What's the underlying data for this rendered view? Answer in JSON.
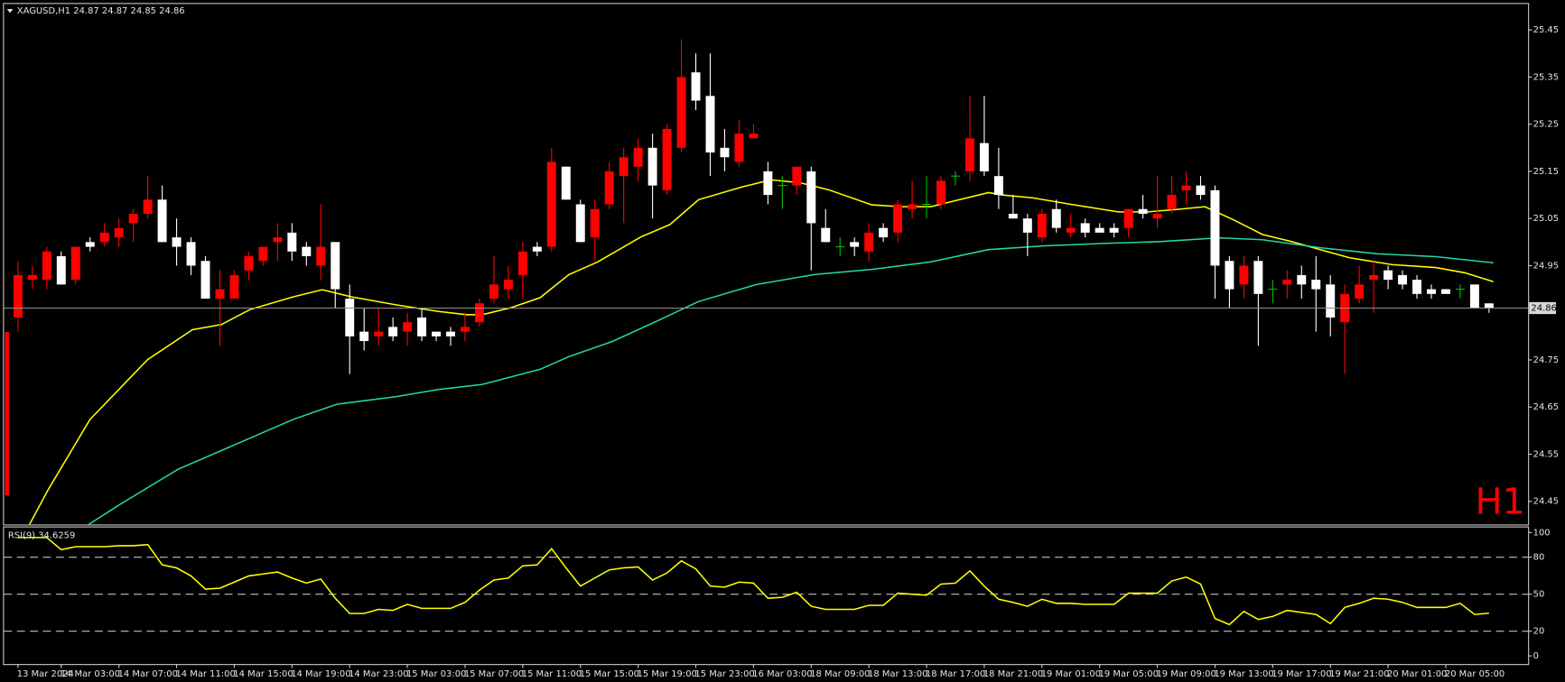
{
  "chart_data": [
    {
      "type": "candlestick",
      "title": "XAGUSD,H1",
      "categories": [
        "13 Mar 2024",
        null,
        null,
        "14 Mar 03:00",
        null,
        null,
        null,
        "14 Mar 07:00",
        null,
        null,
        null,
        "14 Mar 11:00",
        null,
        null,
        null,
        "14 Mar 15:00",
        null,
        null,
        null,
        "14 Mar 19:00",
        null,
        null,
        null,
        "14 Mar 23:00",
        null,
        null,
        null,
        "15 Mar 03:00",
        null,
        null,
        null,
        "15 Mar 07:00",
        null,
        null,
        null,
        "15 Mar 11:00",
        null,
        null,
        null,
        "15 Mar 15:00",
        null,
        null,
        null,
        "15 Mar 19:00",
        null,
        null,
        null,
        "15 Mar 23:00",
        null,
        null,
        null,
        "16 Mar 03:00",
        null,
        null,
        null,
        "18 Mar 09:00",
        null,
        null,
        null,
        "18 Mar 13:00",
        null,
        null,
        null,
        "18 Mar 17:00",
        null,
        null,
        null,
        "18 Mar 21:00",
        null,
        null,
        null,
        "19 Mar 01:00",
        null,
        null,
        null,
        "19 Mar 05:00",
        null,
        null,
        null,
        "19 Mar 09:00",
        null,
        null,
        null,
        "19 Mar 13:00",
        null,
        null,
        null,
        "19 Mar 17:00",
        null,
        null,
        null,
        "19 Mar 21:00",
        null,
        null,
        null,
        "20 Mar 01:00",
        null,
        null,
        null,
        "20 Mar 05:00",
        null,
        null,
        null
      ],
      "open": [
        24.84,
        24.92,
        24.92,
        24.97,
        24.92,
        25.0,
        25.0,
        25.01,
        25.04,
        25.06,
        25.09,
        25.01,
        25.0,
        24.96,
        24.88,
        24.88,
        24.94,
        24.96,
        25.0,
        25.02,
        24.99,
        24.95,
        25.0,
        24.88,
        24.81,
        24.8,
        24.82,
        24.81,
        24.84,
        24.81,
        24.81,
        24.81,
        24.83,
        24.88,
        24.9,
        24.93,
        24.99,
        24.99,
        25.16,
        25.08,
        25.01,
        25.08,
        25.14,
        25.16,
        25.2,
        25.11,
        25.2,
        25.36,
        25.31,
        25.2,
        25.17,
        25.22,
        25.15,
        25.12,
        25.12,
        25.15,
        25.03,
        24.99,
        25.0,
        24.98,
        25.03,
        25.02,
        25.07,
        25.08,
        25.08,
        25.14,
        25.15,
        25.21,
        25.14,
        25.06,
        25.05,
        25.01,
        25.07,
        25.02,
        25.04,
        25.03,
        25.03,
        25.03,
        25.07,
        25.05,
        25.07,
        25.11,
        25.12,
        25.11,
        24.96,
        24.91,
        24.96,
        24.9,
        24.91,
        24.93,
        24.92,
        24.91,
        24.83,
        24.88,
        24.92,
        24.94,
        24.93,
        24.92,
        24.9,
        24.9,
        24.9,
        24.91,
        24.87
      ],
      "high": [
        24.96,
        24.95,
        24.99,
        24.98,
        24.99,
        25.01,
        25.04,
        25.05,
        25.07,
        25.14,
        25.12,
        25.05,
        25.01,
        24.97,
        24.94,
        24.94,
        24.98,
        24.99,
        25.04,
        25.04,
        25.0,
        25.08,
        25.0,
        24.91,
        24.86,
        24.86,
        24.84,
        24.85,
        24.86,
        24.81,
        24.82,
        24.85,
        24.88,
        24.97,
        24.95,
        25.0,
        25.0,
        25.2,
        25.16,
        25.09,
        25.09,
        25.17,
        25.2,
        25.22,
        25.23,
        25.25,
        25.43,
        25.4,
        25.4,
        25.24,
        25.26,
        25.25,
        25.17,
        25.14,
        25.16,
        25.16,
        25.07,
        25.01,
        25.01,
        25.04,
        25.04,
        25.09,
        25.13,
        25.14,
        25.14,
        25.15,
        25.31,
        25.31,
        25.2,
        25.1,
        25.06,
        25.07,
        25.09,
        25.06,
        25.05,
        25.04,
        25.04,
        25.07,
        25.1,
        25.14,
        25.14,
        25.15,
        25.14,
        25.12,
        24.97,
        24.97,
        24.97,
        24.92,
        24.94,
        24.95,
        24.97,
        24.93,
        24.91,
        24.95,
        24.96,
        24.95,
        24.94,
        24.93,
        24.91,
        24.9,
        24.91,
        24.91,
        24.87
      ],
      "low": [
        24.81,
        24.9,
        24.9,
        24.91,
        24.91,
        24.98,
        24.99,
        24.99,
        25.0,
        25.05,
        25.0,
        24.95,
        24.93,
        24.88,
        24.78,
        24.88,
        24.92,
        24.95,
        24.96,
        24.96,
        24.95,
        24.92,
        24.86,
        24.72,
        24.77,
        24.78,
        24.79,
        24.78,
        24.79,
        24.79,
        24.78,
        24.79,
        24.82,
        24.87,
        24.88,
        24.88,
        24.97,
        24.98,
        25.09,
        25.0,
        24.96,
        25.07,
        25.04,
        25.13,
        25.05,
        25.1,
        25.19,
        25.28,
        25.14,
        25.15,
        25.16,
        25.22,
        25.08,
        25.07,
        25.1,
        24.94,
        25.0,
        24.97,
        24.97,
        24.96,
        25.0,
        25.0,
        25.05,
        25.05,
        25.07,
        25.12,
        25.13,
        25.14,
        25.07,
        25.05,
        24.97,
        25.0,
        25.02,
        25.01,
        25.01,
        25.02,
        25.01,
        25.01,
        25.05,
        25.03,
        25.06,
        25.08,
        25.09,
        24.88,
        24.86,
        24.88,
        24.78,
        24.87,
        24.88,
        24.88,
        24.81,
        24.8,
        24.72,
        24.87,
        24.85,
        24.9,
        24.9,
        24.88,
        24.88,
        24.89,
        24.88,
        24.86,
        24.85
      ],
      "close": [
        24.93,
        24.93,
        24.98,
        24.91,
        24.99,
        24.99,
        25.02,
        25.03,
        25.06,
        25.09,
        25.0,
        24.99,
        24.95,
        24.88,
        24.9,
        24.93,
        24.97,
        24.99,
        25.01,
        24.98,
        24.97,
        24.99,
        24.9,
        24.8,
        24.79,
        24.81,
        24.8,
        24.83,
        24.8,
        24.8,
        24.8,
        24.82,
        24.87,
        24.91,
        24.92,
        24.98,
        24.98,
        25.17,
        25.09,
        25.0,
        25.07,
        25.15,
        25.18,
        25.2,
        25.12,
        25.24,
        25.35,
        25.3,
        25.19,
        25.18,
        25.23,
        25.23,
        25.1,
        25.12,
        25.16,
        25.04,
        25.0,
        24.99,
        24.99,
        25.02,
        25.01,
        25.08,
        25.08,
        25.08,
        25.13,
        25.14,
        25.22,
        25.15,
        25.1,
        25.05,
        25.02,
        25.06,
        25.03,
        25.03,
        25.02,
        25.02,
        25.02,
        25.07,
        25.06,
        25.06,
        25.1,
        25.12,
        25.1,
        24.95,
        24.9,
        24.95,
        24.89,
        24.9,
        24.92,
        24.91,
        24.9,
        24.84,
        24.89,
        24.91,
        24.93,
        24.92,
        24.91,
        24.89,
        24.89,
        24.89,
        24.9,
        24.86,
        24.86
      ],
      "up_color": "#ff0000",
      "down_color": "#ffffff",
      "doji_color": "#00c000",
      "ylim": [
        24.401,
        25.505
      ],
      "yticks": [
        25.45,
        25.35,
        25.25,
        25.15,
        25.05,
        24.95,
        24.75,
        24.65,
        24.55,
        24.45
      ],
      "current_price": 24.86,
      "annotation": "H1",
      "series": [
        {
          "color": "#ffff00",
          "x": [
            0.8,
            2.1,
            5,
            9,
            12.1,
            14.1,
            16.1,
            19.1,
            21.1,
            23.1,
            26.2,
            29.1,
            31.1,
            32.2,
            34.2,
            36.2,
            38.2,
            40.2,
            43.2,
            45.2,
            47.2,
            50.2,
            52.2,
            54.2,
            56.2,
            59.2,
            61.2,
            63.3,
            65.3,
            67.3,
            68.2,
            70.3,
            73.2,
            76.3,
            78.3,
            80.3,
            82.3,
            84.3,
            86.3,
            88.3,
            90.3,
            92.3,
            95.3,
            98.3,
            100.3,
            102.3
          ],
          "values": [
            24.401,
            24.475,
            24.624,
            24.751,
            24.814,
            24.825,
            24.857,
            24.884,
            24.899,
            24.884,
            24.867,
            24.853,
            24.846,
            24.846,
            24.861,
            24.882,
            24.931,
            24.958,
            25.011,
            25.037,
            25.09,
            25.117,
            25.132,
            25.126,
            25.111,
            25.079,
            25.075,
            25.075,
            25.09,
            25.105,
            25.1,
            25.094,
            25.079,
            25.064,
            25.064,
            25.069,
            25.075,
            25.047,
            25.016,
            25.001,
            24.984,
            24.967,
            24.952,
            24.946,
            24.935,
            24.916
          ]
        },
        {
          "color": "#20d8a8",
          "x": [
            4.9,
            7.1,
            11.1,
            15.1,
            19.1,
            22.1,
            26.2,
            29.1,
            32.2,
            36.2,
            38.2,
            41.2,
            44.2,
            47.2,
            51.2,
            55.2,
            59.2,
            63.3,
            67.3,
            71.2,
            75.2,
            79.2,
            83.3,
            86.3,
            90.3,
            94.3,
            98.3,
            102.3
          ],
          "values": [
            24.401,
            24.444,
            24.518,
            24.571,
            24.624,
            24.656,
            24.672,
            24.687,
            24.698,
            24.73,
            24.757,
            24.789,
            24.831,
            24.874,
            24.91,
            24.931,
            24.942,
            24.958,
            24.984,
            24.992,
            24.997,
            25.001,
            25.009,
            25.005,
            24.988,
            24.975,
            24.969,
            24.956
          ]
        }
      ]
    },
    {
      "type": "line",
      "title": "RSI(9) 34.6259",
      "color": "#ffff00",
      "values": [
        95.9,
        95.9,
        95.9,
        86.1,
        88.5,
        88.5,
        88.5,
        89.3,
        89.3,
        90.2,
        73.8,
        71.3,
        64.8,
        54.1,
        54.9,
        59.8,
        64.8,
        66.4,
        68.0,
        63.1,
        59.0,
        62.3,
        46.7,
        34.4,
        34.4,
        37.7,
        36.9,
        41.8,
        38.5,
        38.5,
        38.5,
        43.4,
        53.3,
        61.5,
        63.1,
        73.0,
        73.8,
        86.9,
        71.3,
        56.6,
        63.1,
        69.7,
        71.3,
        72.1,
        61.5,
        67.2,
        77.0,
        70.5,
        56.6,
        55.7,
        59.8,
        59.0,
        46.7,
        47.5,
        51.6,
        40.2,
        37.7,
        37.7,
        37.7,
        41.0,
        41.0,
        50.8,
        50.0,
        49.2,
        58.2,
        59.0,
        68.9,
        56.6,
        45.9,
        43.4,
        40.2,
        45.9,
        42.6,
        42.6,
        41.8,
        41.8,
        41.8,
        50.8,
        50.8,
        50.8,
        60.7,
        63.9,
        58.2,
        30.3,
        25.4,
        36.1,
        29.5,
        32.0,
        36.9,
        35.2,
        33.6,
        26.2,
        39.3,
        42.6,
        46.7,
        45.9,
        43.4,
        39.3,
        39.3,
        39.3,
        42.6,
        33.6,
        34.6
      ],
      "ylim": [
        -6.6,
        104.1
      ],
      "yticks": [
        0,
        20,
        50,
        80,
        100
      ],
      "levels": [
        20,
        50,
        80
      ]
    }
  ]
}
